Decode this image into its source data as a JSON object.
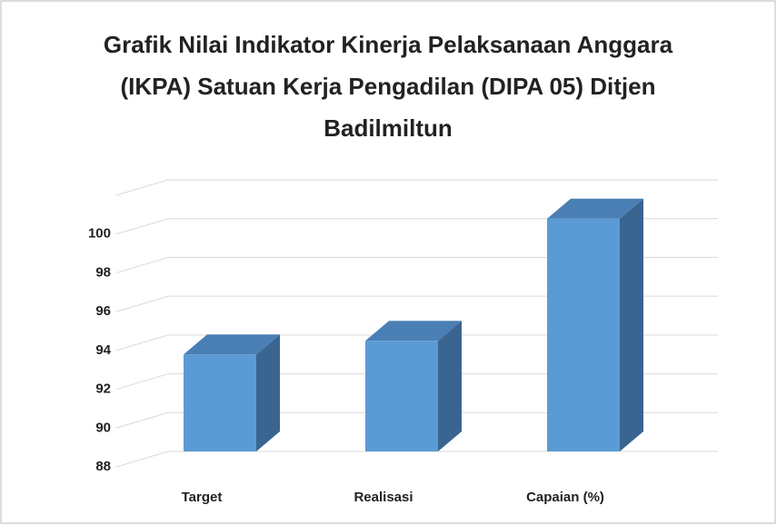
{
  "chart_data": {
    "type": "bar3d",
    "title": "Grafik Nilai Indikator Kinerja Pelaksanaan Anggara (IKPA) Satuan Kerja Pengadilan (DIPA 05) Ditjen Badilmiltun",
    "categories": [
      "Target",
      "Realisasi",
      "Capaian (%)"
    ],
    "values": [
      93,
      93.7,
      100
    ],
    "color": "#5b9bd5",
    "ylim": [
      88,
      102
    ],
    "yticks": [
      88,
      90,
      92,
      94,
      96,
      98,
      100
    ],
    "grid": true
  }
}
